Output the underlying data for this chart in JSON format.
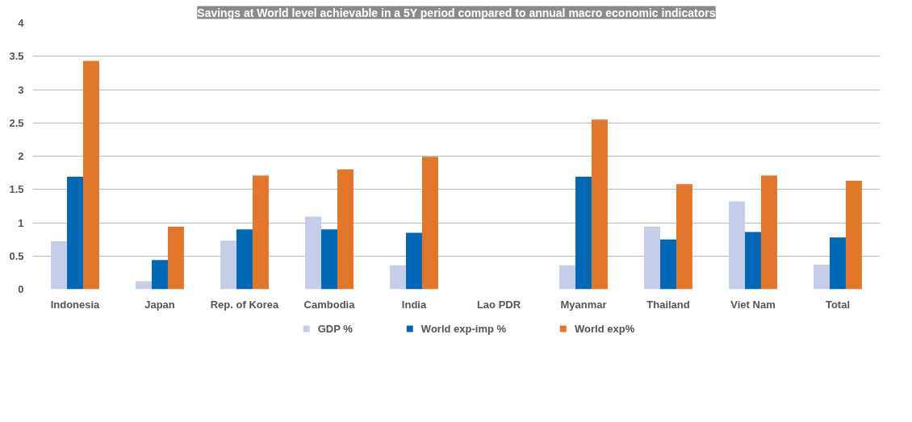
{
  "chart_data": {
    "type": "bar",
    "title": "Savings at World level achievable in a 5Y period compared to annual macro economic indicators",
    "categories": [
      "Indonesia",
      "Japan",
      "Rep. of Korea",
      "Cambodia",
      "India",
      "Lao PDR",
      "Myanmar",
      "Thailand",
      "Viet Nam",
      "Total"
    ],
    "series": [
      {
        "name": "GDP %",
        "color": "#c5cde8",
        "values": [
          0.72,
          0.12,
          0.73,
          1.09,
          0.36,
          0,
          0.36,
          0.94,
          1.32,
          0.37
        ]
      },
      {
        "name": "World exp-imp %",
        "color": "#0068b4",
        "values": [
          1.69,
          0.44,
          0.9,
          0.9,
          0.85,
          0,
          1.69,
          0.75,
          0.86,
          0.78
        ]
      },
      {
        "name": "World exp%",
        "color": "#e2762a",
        "values": [
          3.43,
          0.94,
          1.71,
          1.8,
          1.99,
          0,
          2.55,
          1.58,
          1.71,
          1.63
        ]
      }
    ],
    "ylim": [
      0,
      4
    ],
    "yticks": [
      0,
      0.5,
      1,
      1.5,
      2,
      2.5,
      3,
      3.5,
      4
    ],
    "grid": "y",
    "legend": "bottom"
  }
}
